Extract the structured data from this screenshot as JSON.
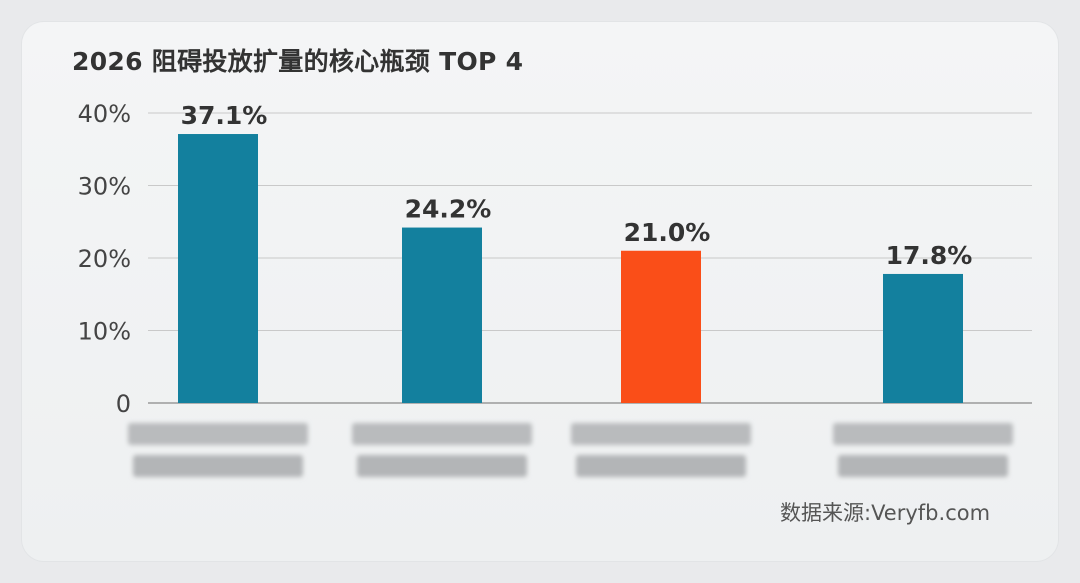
{
  "chart_data": {
    "type": "bar",
    "title": "2026 阻碍投放扩量的核心瓶颈 TOP 4",
    "categories": [
      "",
      "",
      "",
      ""
    ],
    "values": [
      37.1,
      24.2,
      21.0,
      17.8
    ],
    "value_labels": [
      "37.1%",
      "24.2%",
      "21.0%",
      "17.8%"
    ],
    "y_ticks": [
      0,
      10,
      20,
      30,
      40
    ],
    "y_tick_labels": [
      "0",
      "10%",
      "20%",
      "30%",
      "40%"
    ],
    "ylim": [
      0,
      40
    ],
    "grid": true,
    "colors": [
      "#13809e",
      "#13809e",
      "#fa4e18",
      "#13809e"
    ],
    "source": "数据来源:Veryfb.com"
  }
}
